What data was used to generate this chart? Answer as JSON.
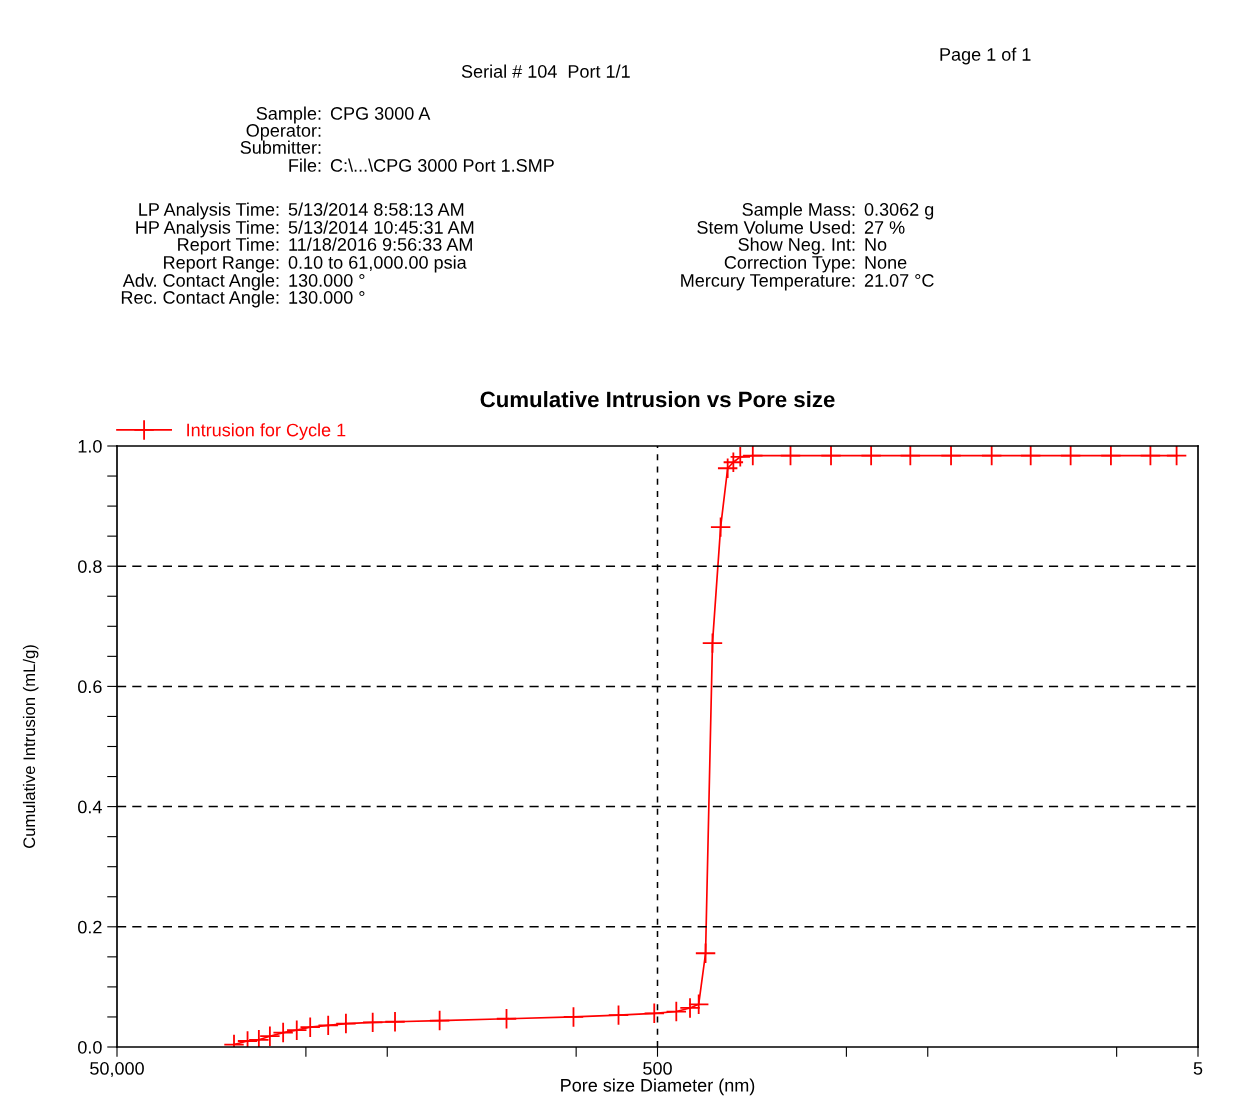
{
  "chart_data": {
    "type": "line",
    "title": "Cumulative Intrusion vs Pore size",
    "xlabel": "Pore size Diameter (nm)",
    "ylabel": "Cumulative Intrusion (mL/g)",
    "annotations": [
      "Serial # 104  Port 1/1",
      "Page 1 of 1",
      "Sample: CPG 3000 A",
      "Operator:",
      "Submitter:",
      "File: C:\\...\\CPG 3000 Port 1.SMP",
      "LP Analysis Time: 5/13/2014 8:58:13 AM",
      "HP Analysis Time: 5/13/2014 10:45:31 AM",
      "Report Time: 11/18/2016 9:56:33 AM",
      "Report Range: 0.10 to 61,000.00 psia",
      "Adv. Contact Angle: 130.000 °",
      "Rec. Contact Angle: 130.000 °",
      "Sample Mass: 0.3062 g",
      "Stem Volume Used: 27 %",
      "Show Neg. Int: No",
      "Correction Type: None",
      "Mercury Temperature: 21.07 °C"
    ],
    "series": [
      {
        "name": "Intrusion for Cycle 1",
        "color": "#ff0000",
        "x": [
          18450,
          16440,
          14930,
          13590,
          12140,
          10810,
          9640,
          8270,
          7110,
          5660,
          4680,
          3200,
          1810,
          1023,
          697,
          514,
          426,
          379,
          352,
          332,
          313,
          292,
          275,
          262,
          247,
          222,
          161,
          114,
          81,
          58,
          41,
          29,
          20.8,
          14.8,
          10.5,
          7.5,
          6.0
        ],
        "values": [
          0.004,
          0.01,
          0.012,
          0.018,
          0.024,
          0.028,
          0.033,
          0.036,
          0.039,
          0.041,
          0.042,
          0.044,
          0.047,
          0.05,
          0.053,
          0.056,
          0.059,
          0.065,
          0.071,
          0.156,
          0.672,
          0.865,
          0.963,
          0.973,
          0.982,
          0.984,
          0.984,
          0.984,
          0.984,
          0.984,
          0.984,
          0.984,
          0.984,
          0.984,
          0.984,
          0.984,
          0.984
        ]
      }
    ],
    "log": "x",
    "xlim": [
      50000,
      5
    ],
    "xticks": [
      {
        "value": 50000,
        "label": "50,000"
      },
      {
        "value": 10000,
        "label": null
      },
      {
        "value": 5000,
        "label": null
      },
      {
        "value": 1000,
        "label": null
      },
      500,
      {
        "value": 100,
        "label": null
      },
      {
        "value": 50,
        "label": null
      },
      {
        "value": 10,
        "label": null
      },
      5
    ],
    "ylim": [
      0,
      1.0
    ],
    "yticks": [
      {
        "value": 0,
        "label": "0.0"
      },
      {
        "value": 0.05,
        "label": null
      },
      {
        "value": 0.1,
        "label": null
      },
      {
        "value": 0.15,
        "label": null
      },
      {
        "value": 0.2,
        "label": "0.2"
      },
      {
        "value": 0.25,
        "label": null
      },
      {
        "value": 0.3,
        "label": null
      },
      {
        "value": 0.35,
        "label": null
      },
      {
        "value": 0.4,
        "label": "0.4"
      },
      {
        "value": 0.45,
        "label": null
      },
      {
        "value": 0.5,
        "label": null
      },
      {
        "value": 0.55,
        "label": null
      },
      {
        "value": 0.6,
        "label": "0.6"
      },
      {
        "value": 0.65,
        "label": null
      },
      {
        "value": 0.7,
        "label": null
      },
      {
        "value": 0.75,
        "label": null
      },
      {
        "value": 0.8,
        "label": "0.8"
      },
      {
        "value": 0.85,
        "label": null
      },
      {
        "value": 0.9,
        "label": null
      },
      {
        "value": 0.95,
        "label": null
      },
      {
        "value": 1.0,
        "label": "1.0"
      }
    ],
    "grid": true,
    "legend": "top left",
    "marker": "cross",
    "line_style": "solid"
  }
}
